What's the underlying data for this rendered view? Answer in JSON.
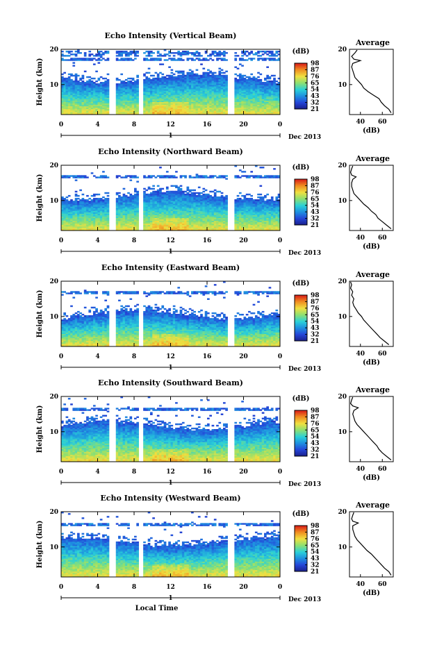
{
  "chart_data": [
    {
      "type": "heatmap",
      "title": "Echo Intensity (Vertical Beam)",
      "ylabel": "Height (km)",
      "xlabel": "",
      "x_ticks": [
        "0",
        "4",
        "8",
        "12",
        "16",
        "20",
        "0"
      ],
      "y_ticks": [
        "20",
        "10"
      ],
      "xlim": [
        0,
        24
      ],
      "ylim": [
        1.5,
        20
      ],
      "day_marker": "1",
      "date_label": "Dec 2013",
      "colorbar": {
        "unit": "(dB)",
        "ticks": [
          "98",
          "87",
          "76",
          "65",
          "54",
          "43",
          "32",
          "21"
        ],
        "range": [
          21,
          98
        ]
      },
      "data_gaps": [
        [
          5.3,
          6.1
        ],
        [
          8.6,
          9.1
        ],
        [
          18.3,
          19.1
        ]
      ],
      "average": {
        "title": "Average",
        "xlabel": "(dB)",
        "x_ticks": [
          "40",
          "60"
        ],
        "y_ticks": [
          "20",
          "10"
        ],
        "xlim": [
          30,
          70
        ],
        "ylim": [
          1.5,
          20
        ],
        "profile": [
          [
            2,
            68
          ],
          [
            3,
            66
          ],
          [
            4,
            62
          ],
          [
            5,
            59
          ],
          [
            6,
            57
          ],
          [
            7,
            52
          ],
          [
            8,
            47
          ],
          [
            9,
            43
          ],
          [
            10,
            41
          ],
          [
            11,
            38
          ],
          [
            12,
            35
          ],
          [
            13,
            34
          ],
          [
            14,
            33
          ],
          [
            15,
            32
          ],
          [
            16,
            33
          ],
          [
            16.8,
            40
          ],
          [
            17.2,
            34
          ],
          [
            18,
            32
          ],
          [
            19,
            35
          ],
          [
            19.8,
            37
          ]
        ]
      }
    },
    {
      "type": "heatmap",
      "title": "Echo Intensity (Northward Beam)",
      "ylabel": "Height (km)",
      "xlabel": "",
      "x_ticks": [
        "0",
        "4",
        "8",
        "12",
        "16",
        "20",
        "0"
      ],
      "y_ticks": [
        "20",
        "10"
      ],
      "xlim": [
        0,
        24
      ],
      "ylim": [
        1.5,
        20
      ],
      "day_marker": "1",
      "date_label": "Dec 2013",
      "colorbar": {
        "unit": "(dB)",
        "ticks": [
          "98",
          "87",
          "76",
          "65",
          "54",
          "43",
          "32",
          "21"
        ],
        "range": [
          21,
          98
        ]
      },
      "data_gaps": [
        [
          5.3,
          6.1
        ],
        [
          8.6,
          9.1
        ],
        [
          18.3,
          19.1
        ]
      ],
      "average": {
        "title": "Average",
        "xlabel": "(dB)",
        "x_ticks": [
          "40",
          "60"
        ],
        "y_ticks": [
          "20",
          "10"
        ],
        "xlim": [
          30,
          70
        ],
        "ylim": [
          1.5,
          20
        ],
        "profile": [
          [
            2,
            68
          ],
          [
            3,
            64
          ],
          [
            4,
            60
          ],
          [
            5,
            56
          ],
          [
            6,
            54
          ],
          [
            7,
            50
          ],
          [
            8,
            47
          ],
          [
            9,
            43
          ],
          [
            10,
            40
          ],
          [
            11,
            37
          ],
          [
            12,
            34
          ],
          [
            13,
            33
          ],
          [
            14,
            32
          ],
          [
            15,
            32
          ],
          [
            16,
            33
          ],
          [
            16.7,
            36
          ],
          [
            17.2,
            32
          ],
          [
            18,
            31
          ],
          [
            19,
            32
          ],
          [
            19.8,
            33
          ]
        ]
      }
    },
    {
      "type": "heatmap",
      "title": "Echo Intensity (Eastward Beam)",
      "ylabel": "Height (km)",
      "xlabel": "",
      "x_ticks": [
        "0",
        "4",
        "8",
        "12",
        "16",
        "20",
        "0"
      ],
      "y_ticks": [
        "20",
        "10"
      ],
      "xlim": [
        0,
        24
      ],
      "ylim": [
        1.5,
        20
      ],
      "day_marker": "1",
      "date_label": "Dec 2013",
      "colorbar": {
        "unit": "(dB)",
        "ticks": [
          "98",
          "87",
          "76",
          "65",
          "54",
          "43",
          "32",
          "21"
        ],
        "range": [
          21,
          98
        ]
      },
      "data_gaps": [
        [
          5.3,
          6.1
        ],
        [
          8.6,
          9.1
        ],
        [
          18.3,
          19.1
        ]
      ],
      "average": {
        "title": "Average",
        "xlabel": "(dB)",
        "x_ticks": [
          "40",
          "60"
        ],
        "y_ticks": [
          "20",
          "10"
        ],
        "xlim": [
          30,
          70
        ],
        "ylim": [
          1.5,
          20
        ],
        "profile": [
          [
            2,
            66
          ],
          [
            3,
            62
          ],
          [
            4,
            58
          ],
          [
            5,
            55
          ],
          [
            6,
            52
          ],
          [
            7,
            49
          ],
          [
            8,
            46
          ],
          [
            9,
            43
          ],
          [
            10,
            41
          ],
          [
            11,
            38
          ],
          [
            12,
            36
          ],
          [
            13,
            34
          ],
          [
            14,
            33
          ],
          [
            15,
            34
          ],
          [
            16,
            32
          ],
          [
            17,
            33
          ],
          [
            18,
            31
          ],
          [
            19,
            32
          ],
          [
            19.8,
            31
          ]
        ]
      }
    },
    {
      "type": "heatmap",
      "title": "Echo Intensity (Southward Beam)",
      "ylabel": "Height (km)",
      "xlabel": "",
      "x_ticks": [
        "0",
        "4",
        "8",
        "12",
        "16",
        "20",
        "0"
      ],
      "y_ticks": [
        "20",
        "10"
      ],
      "xlim": [
        0,
        24
      ],
      "ylim": [
        1.5,
        20
      ],
      "day_marker": "1",
      "date_label": "Dec 2013",
      "colorbar": {
        "unit": "(dB)",
        "ticks": [
          "98",
          "87",
          "76",
          "65",
          "54",
          "43",
          "32",
          "21"
        ],
        "range": [
          21,
          98
        ]
      },
      "data_gaps": [
        [
          5.3,
          6.1
        ],
        [
          8.6,
          9.1
        ],
        [
          18.3,
          19.1
        ]
      ],
      "average": {
        "title": "Average",
        "xlabel": "(dB)",
        "x_ticks": [
          "40",
          "60"
        ],
        "y_ticks": [
          "20",
          "10"
        ],
        "xlim": [
          30,
          70
        ],
        "ylim": [
          1.5,
          20
        ],
        "profile": [
          [
            2,
            68
          ],
          [
            3,
            64
          ],
          [
            4,
            60
          ],
          [
            5,
            57
          ],
          [
            6,
            55
          ],
          [
            7,
            52
          ],
          [
            8,
            49
          ],
          [
            9,
            46
          ],
          [
            10,
            43
          ],
          [
            11,
            40
          ],
          [
            12,
            37
          ],
          [
            13,
            35
          ],
          [
            14,
            34
          ],
          [
            15,
            33
          ],
          [
            16,
            34
          ],
          [
            16.8,
            38
          ],
          [
            17.3,
            33
          ],
          [
            18,
            31
          ],
          [
            19,
            32
          ],
          [
            19.8,
            33
          ]
        ]
      }
    },
    {
      "type": "heatmap",
      "title": "Echo Intensity (Westward Beam)",
      "ylabel": "Height (km)",
      "xlabel": "Local Time",
      "x_ticks": [
        "0",
        "4",
        "8",
        "12",
        "16",
        "20",
        "0"
      ],
      "y_ticks": [
        "20",
        "10"
      ],
      "xlim": [
        0,
        24
      ],
      "ylim": [
        1.5,
        20
      ],
      "day_marker": "1",
      "date_label": "Dec 2013",
      "colorbar": {
        "unit": "(dB)",
        "ticks": [
          "98",
          "87",
          "76",
          "65",
          "54",
          "43",
          "32",
          "21"
        ],
        "range": [
          21,
          98
        ]
      },
      "data_gaps": [
        [
          5.3,
          6.1
        ],
        [
          8.6,
          9.1
        ],
        [
          18.3,
          19.1
        ]
      ],
      "average": {
        "title": "Average",
        "xlabel": "(dB)",
        "x_ticks": [
          "40",
          "60"
        ],
        "y_ticks": [
          "20",
          "10"
        ],
        "xlim": [
          30,
          70
        ],
        "ylim": [
          1.5,
          20
        ],
        "profile": [
          [
            2,
            68
          ],
          [
            3,
            66
          ],
          [
            4,
            62
          ],
          [
            5,
            59
          ],
          [
            6,
            56
          ],
          [
            7,
            53
          ],
          [
            8,
            50
          ],
          [
            9,
            46
          ],
          [
            10,
            43
          ],
          [
            11,
            40
          ],
          [
            12,
            37
          ],
          [
            13,
            35
          ],
          [
            14,
            34
          ],
          [
            15,
            33
          ],
          [
            16,
            33
          ],
          [
            16.8,
            38
          ],
          [
            17.3,
            33
          ],
          [
            18,
            32
          ],
          [
            19,
            33
          ],
          [
            19.8,
            34
          ]
        ]
      }
    }
  ]
}
